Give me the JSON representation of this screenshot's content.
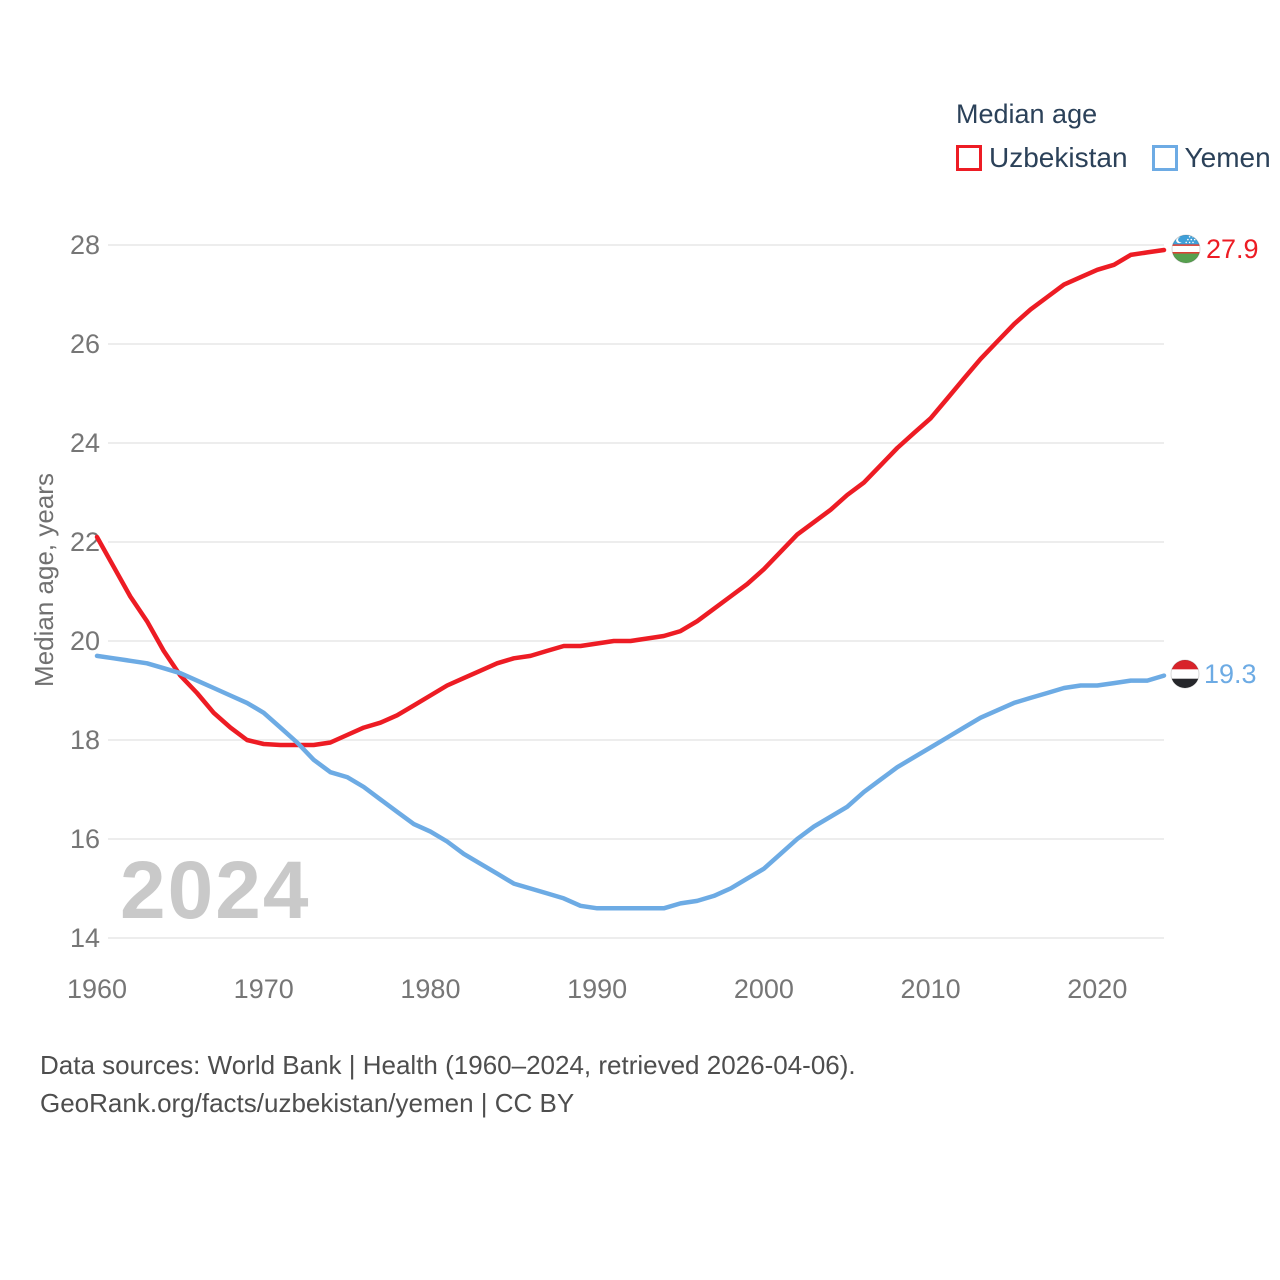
{
  "footer": {
    "line1": "Data sources: World Bank | Health (1960–2024, retrieved 2026-04-06).",
    "line2": "GeoRank.org/facts/uzbekistan/yemen | CC BY"
  },
  "colors": {
    "uzbekistan_line": "#ed1c24",
    "yemen_line": "#6dabe4",
    "legend_text": "#2b4159",
    "axis_text": "#767676",
    "gridline": "#e7e7e7",
    "watermark": "#c9c9c9",
    "footer_text": "#4e4e4e",
    "uzbekistan_flag": {
      "blue": "#3f9fd8",
      "red": "#d52b1e",
      "white": "#ffffff",
      "green": "#56a04e"
    },
    "yemen_flag": {
      "red": "#d8232a",
      "white": "#ffffff",
      "black": "#26272b"
    }
  },
  "chart_data": {
    "type": "line",
    "title": "Median age",
    "ylabel": "Median age, years",
    "watermark": "2024",
    "x_start": 1960,
    "x_end": 2024,
    "xticks": [
      1960,
      1970,
      1980,
      1990,
      2000,
      2010,
      2020
    ],
    "yticks": [
      14,
      16,
      18,
      20,
      22,
      24,
      26,
      28
    ],
    "ylim": [
      14,
      28
    ],
    "grid": "horizontal-only",
    "legend_position": "top-right",
    "series": [
      {
        "name": "Uzbekistan",
        "color": "#ed1c24",
        "flag_icon": "uzbekistan-flag",
        "end_label": "27.9",
        "end_value": 27.9,
        "values": [
          22.1,
          21.5,
          20.9,
          20.4,
          19.8,
          19.3,
          18.95,
          18.55,
          18.25,
          18.0,
          17.92,
          17.9,
          17.9,
          17.9,
          17.95,
          18.1,
          18.25,
          18.35,
          18.5,
          18.7,
          18.9,
          19.1,
          19.25,
          19.4,
          19.55,
          19.65,
          19.7,
          19.8,
          19.9,
          19.9,
          19.95,
          20.0,
          20.0,
          20.05,
          20.1,
          20.2,
          20.4,
          20.65,
          20.9,
          21.15,
          21.45,
          21.8,
          22.15,
          22.4,
          22.65,
          22.95,
          23.2,
          23.55,
          23.9,
          24.2,
          24.5,
          24.9,
          25.3,
          25.7,
          26.05,
          26.4,
          26.7,
          26.95,
          27.2,
          27.35,
          27.5,
          27.6,
          27.8,
          27.85,
          27.9
        ]
      },
      {
        "name": "Yemen",
        "color": "#6dabe4",
        "flag_icon": "yemen-flag",
        "end_label": "19.3",
        "end_value": 19.3,
        "values": [
          19.7,
          19.65,
          19.6,
          19.55,
          19.45,
          19.35,
          19.2,
          19.05,
          18.9,
          18.75,
          18.55,
          18.25,
          17.95,
          17.6,
          17.35,
          17.25,
          17.05,
          16.8,
          16.55,
          16.3,
          16.15,
          15.95,
          15.7,
          15.5,
          15.3,
          15.1,
          15.0,
          14.9,
          14.8,
          14.65,
          14.6,
          14.6,
          14.6,
          14.6,
          14.6,
          14.7,
          14.75,
          14.85,
          15.0,
          15.2,
          15.4,
          15.7,
          16.0,
          16.25,
          16.45,
          16.65,
          16.95,
          17.2,
          17.45,
          17.65,
          17.85,
          18.05,
          18.25,
          18.45,
          18.6,
          18.75,
          18.85,
          18.95,
          19.05,
          19.1,
          19.1,
          19.15,
          19.2,
          19.2,
          19.3
        ]
      }
    ]
  }
}
